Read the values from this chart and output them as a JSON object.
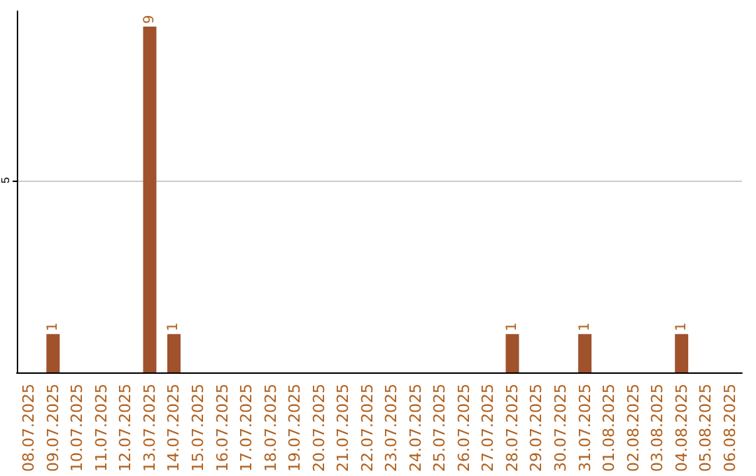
{
  "chart_data": {
    "type": "bar",
    "categories": [
      "08.07.2025",
      "09.07.2025",
      "10.07.2025",
      "11.07.2025",
      "12.07.2025",
      "13.07.2025",
      "14.07.2025",
      "15.07.2025",
      "16.07.2025",
      "17.07.2025",
      "18.07.2025",
      "19.07.2025",
      "20.07.2025",
      "21.07.2025",
      "22.07.2025",
      "23.07.2025",
      "24.07.2025",
      "25.07.2025",
      "26.07.2025",
      "27.07.2025",
      "28.07.2025",
      "29.07.2025",
      "30.07.2025",
      "31.07.2025",
      "01.08.2025",
      "02.08.2025",
      "03.08.2025",
      "04.08.2025",
      "05.08.2025",
      "06.08.2025"
    ],
    "values": [
      0,
      1,
      0,
      0,
      0,
      9,
      1,
      0,
      0,
      0,
      0,
      0,
      0,
      0,
      0,
      0,
      0,
      0,
      0,
      0,
      1,
      0,
      0,
      1,
      0,
      0,
      0,
      1,
      0,
      0
    ],
    "value_labels": [
      null,
      "1",
      null,
      null,
      null,
      "9",
      "1",
      null,
      null,
      null,
      null,
      null,
      null,
      null,
      null,
      null,
      null,
      null,
      null,
      null,
      "1",
      null,
      null,
      "1",
      null,
      null,
      null,
      "1",
      null,
      null
    ],
    "color": "#a0522d",
    "ylim": [
      0,
      9.4
    ],
    "yticks": [
      5
    ],
    "grid": "y"
  }
}
